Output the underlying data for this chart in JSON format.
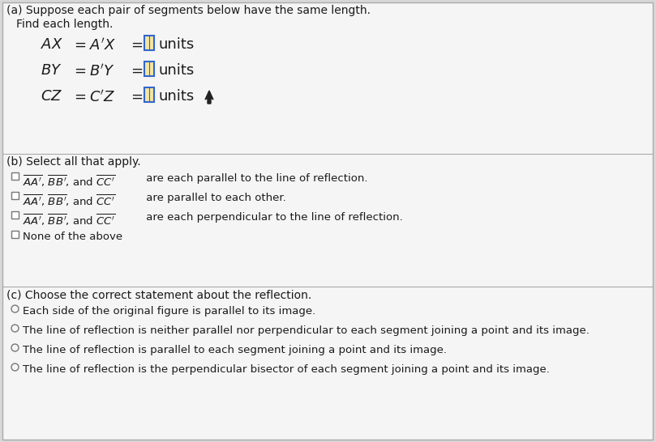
{
  "bg_color": "#d8d8d8",
  "panel_color": "#f5f5f5",
  "border_color": "#aaaaaa",
  "title_a": "(a) Suppose each pair of segments below have the same length.",
  "subtitle_a": "Find each length.",
  "title_b": "(b) Select all that apply.",
  "b_opt1_suffix": " are each parallel to the line of reflection.",
  "b_opt2_suffix": " are parallel to each other.",
  "b_opt3_suffix": " are each perpendicular to the line of reflection.",
  "b_opt4": "None of the above",
  "title_c": "(c) Choose the correct statement about the reflection.",
  "c_opt1": "Each side of the original figure is parallel to its image.",
  "c_opt2": "The line of reflection is neither parallel nor perpendicular to each segment joining a point and its image.",
  "c_opt3": "The line of reflection is parallel to each segment joining a point and its image.",
  "c_opt4": "The line of reflection is the perpendicular bisector of each segment joining a point and its image.",
  "text_color": "#1a1a1a",
  "checkbox_color": "#777777",
  "radio_color": "#777777",
  "input_box_border": "#3366cc",
  "input_box_fill": "#f5e6a0",
  "font_size_body": 9.5,
  "font_size_title": 10,
  "font_size_eq": 13
}
